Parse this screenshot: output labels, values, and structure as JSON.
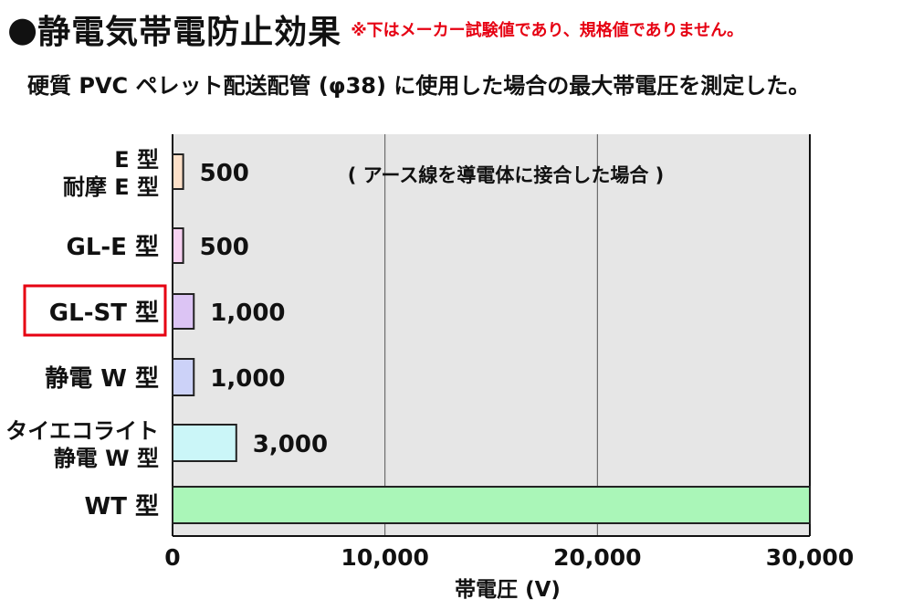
{
  "header": {
    "bullet": "●",
    "title": "静電気帯電防止効果",
    "note": "※下はメーカー試験値であり、規格値でありません。"
  },
  "subtitle": "硬質 PVC ペレット配送配管 (φ38) に使用した場合の最大帯電圧を測定した。",
  "chart_data": {
    "type": "bar",
    "orientation": "horizontal",
    "annotation": "( アース線を導電体に接合した場合 )",
    "xlabel": "帯電圧 (V)",
    "ylabel": "",
    "xlim": [
      0,
      30000
    ],
    "x_ticks": [
      0,
      10000,
      20000,
      30000
    ],
    "x_tick_labels": [
      "0",
      "10,000",
      "20,000",
      "30,000"
    ],
    "grid": true,
    "categories": [
      [
        "E 型",
        "耐摩 E 型"
      ],
      [
        "GL-E 型"
      ],
      [
        "GL-ST 型"
      ],
      [
        "静電 W 型"
      ],
      [
        "タイエコライト",
        "静電 W 型"
      ],
      [
        "WT 型"
      ]
    ],
    "values": [
      500,
      500,
      1000,
      1000,
      3000,
      30000
    ],
    "value_labels": [
      "500",
      "500",
      "1,000",
      "1,000",
      "3,000",
      ""
    ],
    "bar_colors": [
      "#fde0c8",
      "#f8d2f2",
      "#dcc4f4",
      "#ccd2f8",
      "#cbf6f8",
      "#aaf6b8"
    ],
    "highlighted_category_index": 2,
    "colors": {
      "plot_background": "#e6e6e6",
      "highlight_border": "#e60012",
      "grid": "#555555",
      "axis": "#111111",
      "bar_border": "#222222"
    }
  }
}
